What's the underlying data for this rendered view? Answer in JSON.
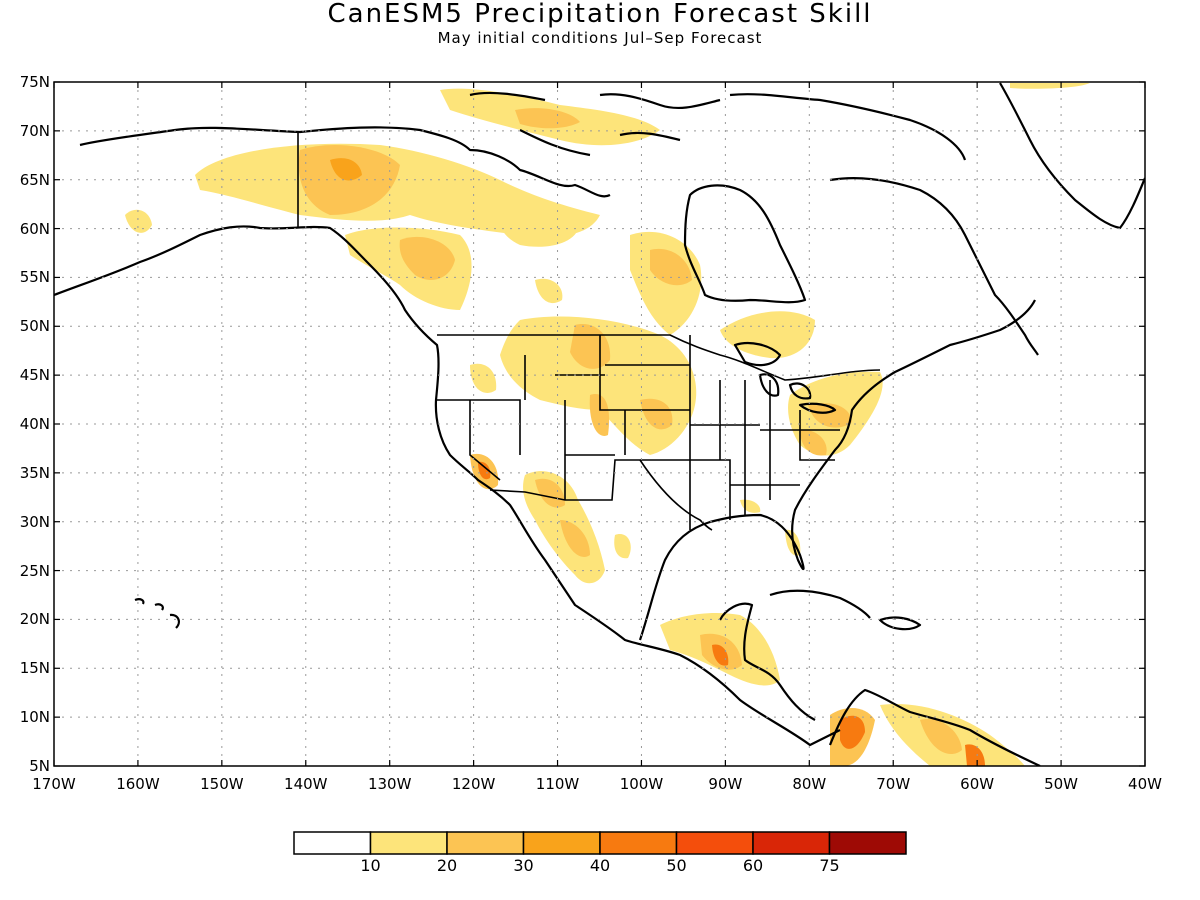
{
  "title": "CanESM5 Precipitation Forecast Skill",
  "subtitle": "May initial conditions   Jul–Sep Forecast",
  "map": {
    "projection": "lat-lon (cylindrical equidistant)",
    "lon_range": [
      -170,
      -40
    ],
    "lat_range": [
      5,
      75
    ],
    "lat_ticks": [
      "75N",
      "70N",
      "65N",
      "60N",
      "55N",
      "50N",
      "45N",
      "40N",
      "35N",
      "30N",
      "25N",
      "20N",
      "15N",
      "10N",
      "5N"
    ],
    "lon_ticks": [
      "170W",
      "160W",
      "150W",
      "140W",
      "130W",
      "120W",
      "110W",
      "100W",
      "90W",
      "80W",
      "70W",
      "60W",
      "50W",
      "40W"
    ],
    "grid": "dotted",
    "features": [
      "coastlines",
      "US state borders",
      "Canada/US border",
      "Mexico border"
    ]
  },
  "legend": {
    "labels": [
      "10",
      "20",
      "30",
      "40",
      "50",
      "60",
      "75"
    ],
    "colors": [
      "#ffffff",
      "#fde47a",
      "#fcc453",
      "#f9a31b",
      "#f77a10",
      "#f44e0c",
      "#d92607",
      "#9e0a05"
    ]
  },
  "shaded_regions": [
    {
      "region": "Alaska / Yukon",
      "level": "10-20"
    },
    {
      "region": "Yukon interior",
      "level": "20-30"
    },
    {
      "region": "Northern Canada / Arctic",
      "level": "10-20"
    },
    {
      "region": "Hudson Bay west",
      "level": "10-30"
    },
    {
      "region": "Northern Plains / Montana / Dakotas",
      "level": "10-30"
    },
    {
      "region": "Ontario / Great Lakes north",
      "level": "10-20"
    },
    {
      "region": "Mid-Atlantic / Northeast US",
      "level": "10-30"
    },
    {
      "region": "Southern California / Nevada",
      "level": "20-40"
    },
    {
      "region": "Arizona / NW Mexico",
      "level": "10-30"
    },
    {
      "region": "Central America",
      "level": "10-40"
    },
    {
      "region": "Northern South America (Colombia/Venezuela)",
      "level": "10-40"
    }
  ]
}
